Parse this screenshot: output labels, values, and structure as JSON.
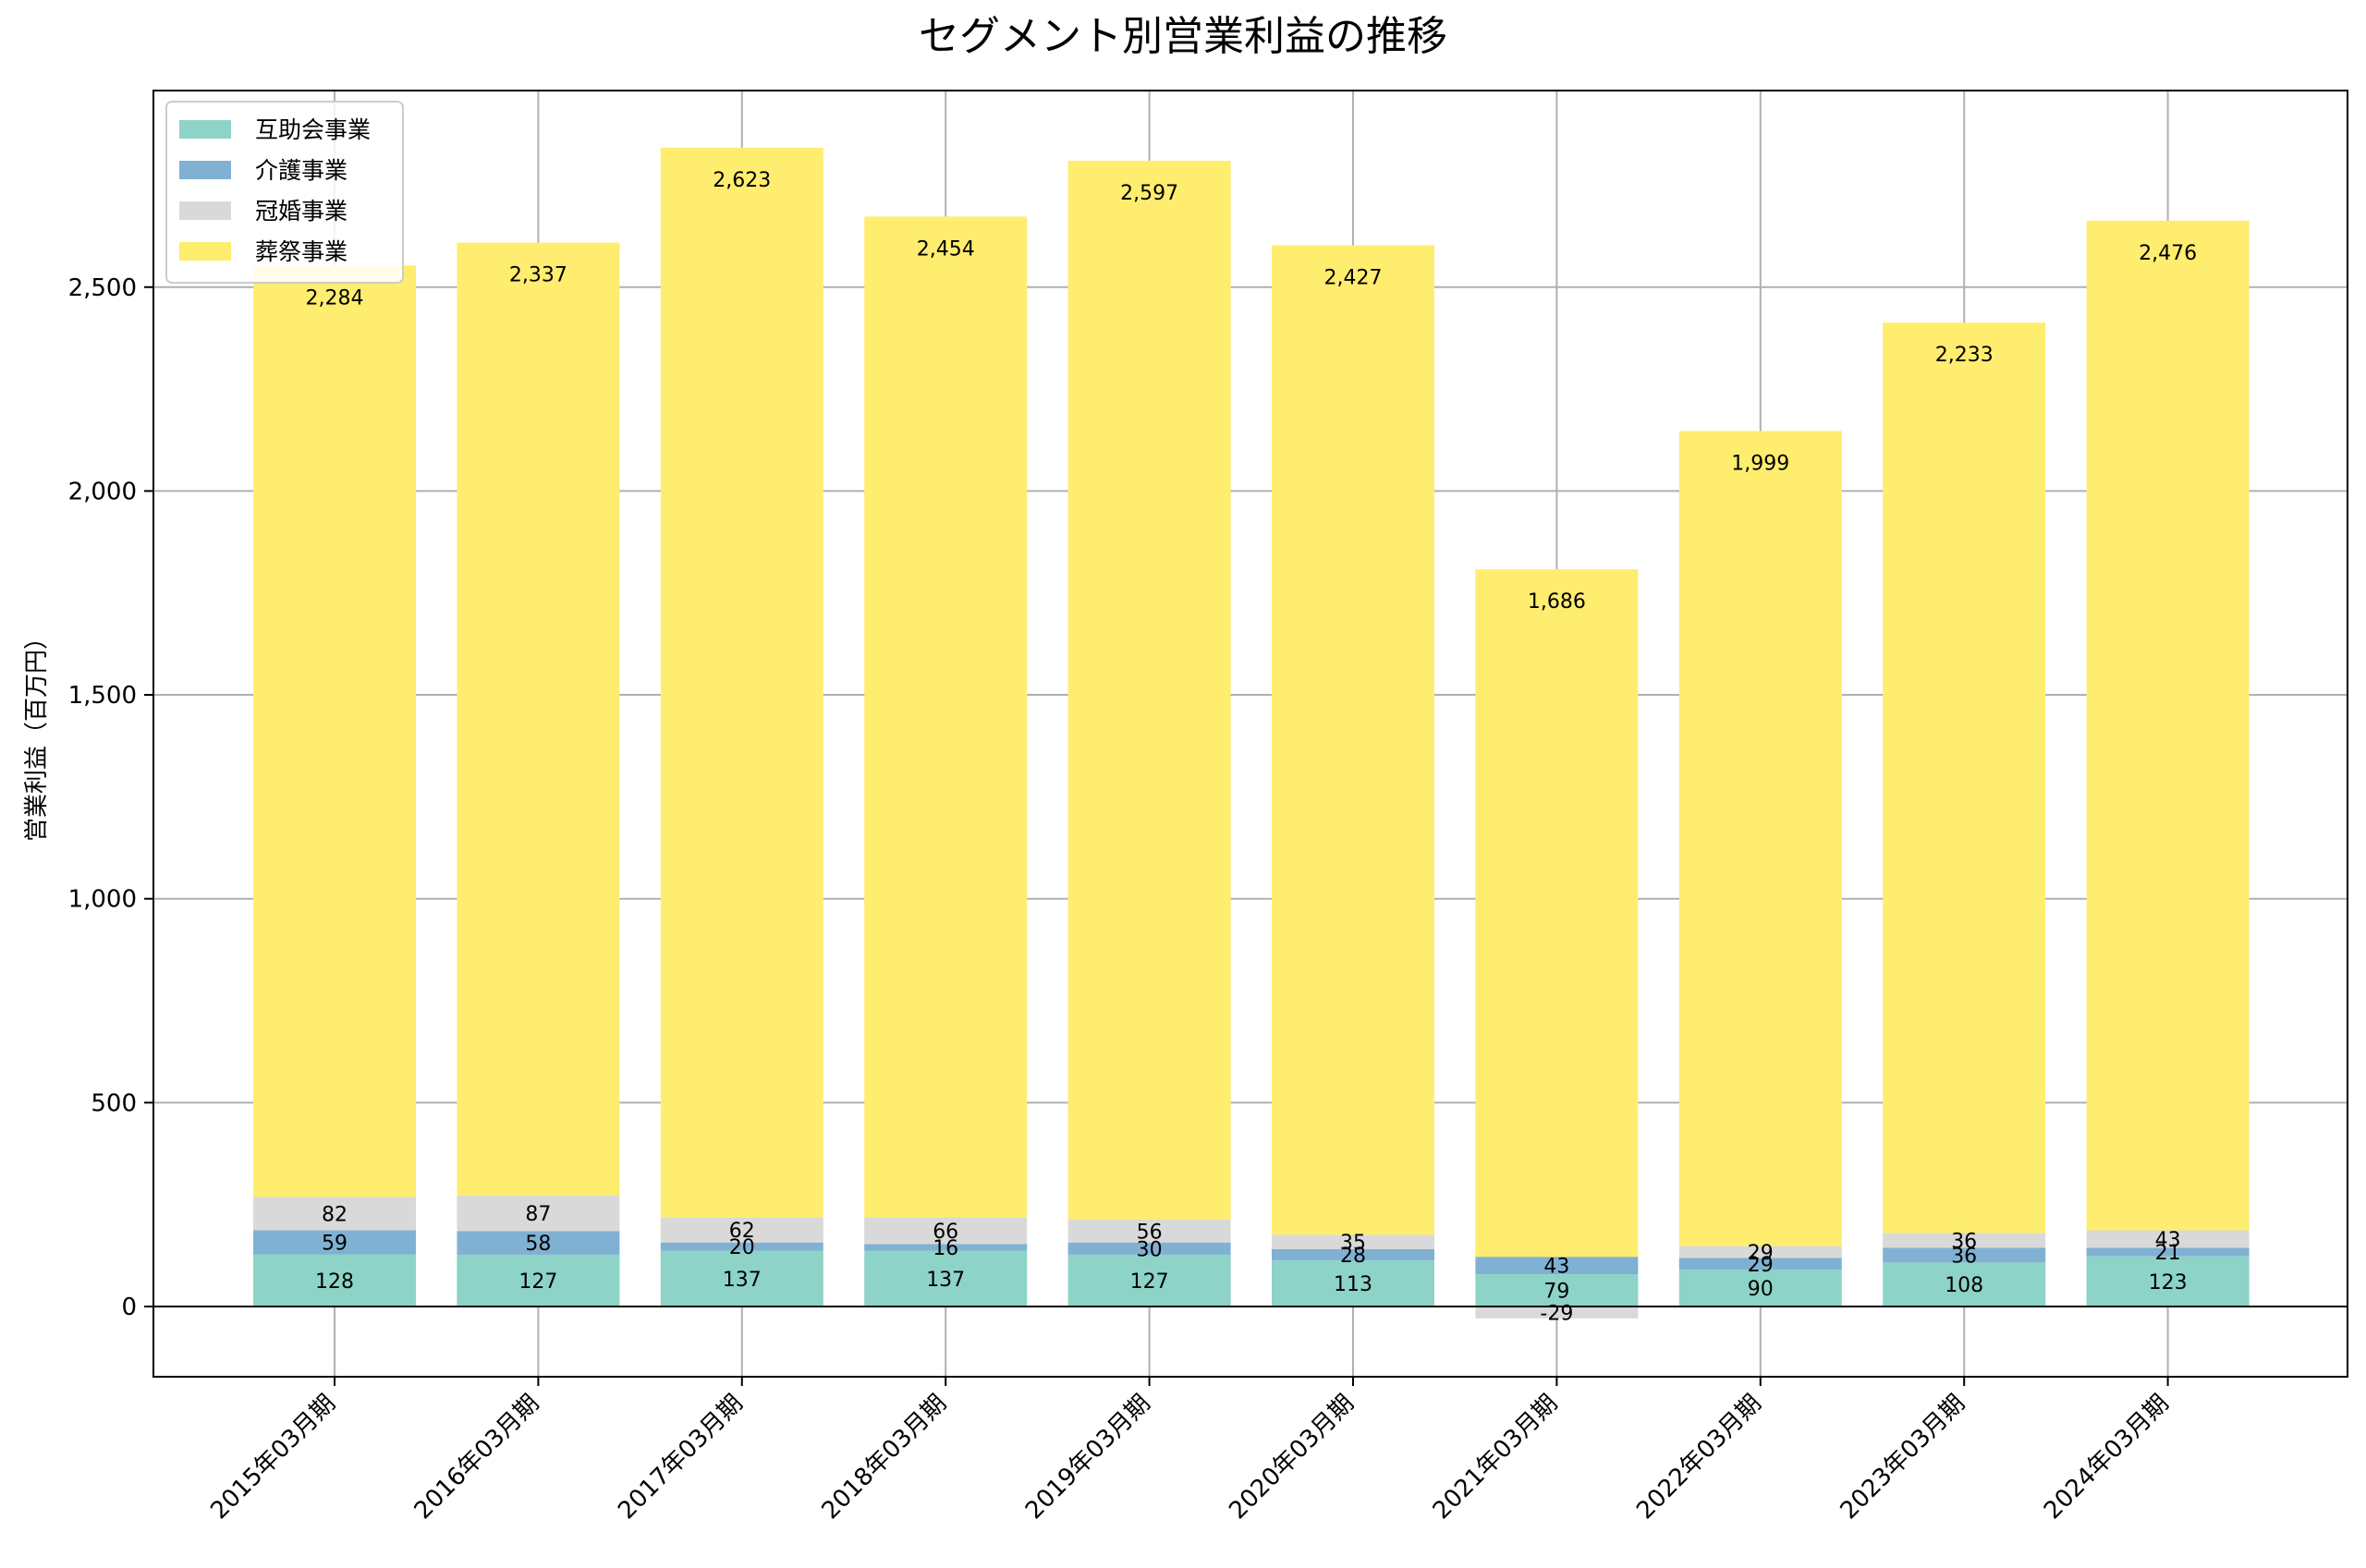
{
  "chart_data": {
    "type": "bar",
    "stacked": true,
    "title": "セグメント別営業利益の推移",
    "xlabel": "",
    "ylabel": "営業利益（百万円）",
    "ylim": [
      -170,
      3000
    ],
    "yticks": [
      0,
      500,
      1000,
      1500,
      2000,
      2500
    ],
    "ytick_labels": [
      "0",
      "500",
      "1,000",
      "1,500",
      "2,000",
      "2,500"
    ],
    "grid": true,
    "legend_position": "top-left",
    "categories": [
      "2015年03月期",
      "2016年03月期",
      "2017年03月期",
      "2018年03月期",
      "2019年03月期",
      "2020年03月期",
      "2021年03月期",
      "2022年03月期",
      "2023年03月期",
      "2024年03月期"
    ],
    "series": [
      {
        "name": "互助会事業",
        "color": "#8dd3c7",
        "values": [
          128,
          127,
          137,
          137,
          127,
          113,
          79,
          90,
          108,
          123
        ],
        "labels": [
          "128",
          "127",
          "137",
          "137",
          "127",
          "113",
          "79",
          "90",
          "108",
          "123"
        ]
      },
      {
        "name": "介護事業",
        "color": "#80b1d3",
        "values": [
          59,
          58,
          20,
          16,
          30,
          28,
          43,
          29,
          36,
          21
        ],
        "labels": [
          "59",
          "58",
          "20",
          "16",
          "30",
          "28",
          "43",
          "29",
          "36",
          "21"
        ]
      },
      {
        "name": "冠婚事業",
        "color": "#d9d9d9",
        "values": [
          82,
          87,
          62,
          66,
          56,
          35,
          -29,
          29,
          36,
          43
        ],
        "labels": [
          "82",
          "87",
          "62",
          "66",
          "56",
          "35",
          "-29",
          "29",
          "36",
          "43"
        ]
      },
      {
        "name": "葬祭事業",
        "color": "#ffed6f",
        "values": [
          2284,
          2337,
          2623,
          2454,
          2597,
          2427,
          1686,
          1999,
          2233,
          2476
        ],
        "labels": [
          "2,284",
          "2,337",
          "2,623",
          "2,454",
          "2,597",
          "2,427",
          "1,686",
          "1,999",
          "2,233",
          "2,476"
        ]
      }
    ]
  }
}
